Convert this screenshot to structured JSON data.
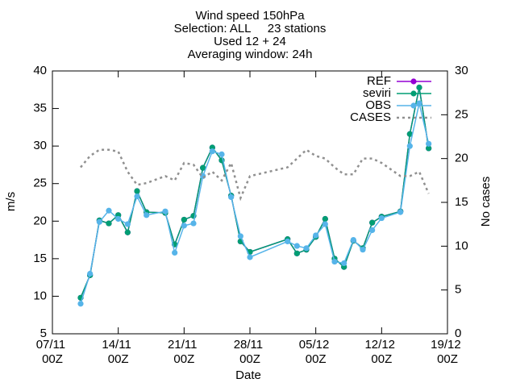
{
  "chart_data": {
    "type": "line",
    "title": [
      "Wind speed 150hPa",
      "Selection: ALL     23 stations",
      "Used 12 + 24",
      "Averaging window: 24h"
    ],
    "xlabel": "Date",
    "ylabel": "m/s",
    "y2label": "No cases",
    "x": [
      "10/11 00Z",
      "11/11 00Z",
      "12/11 00Z",
      "13/11 00Z",
      "14/11 00Z",
      "15/11 00Z",
      "16/11 00Z",
      "17/11 00Z",
      "19/11 00Z",
      "20/11 00Z",
      "21/11 00Z",
      "22/11 00Z",
      "23/11 00Z",
      "24/11 00Z",
      "25/11 00Z",
      "26/11 00Z",
      "27/11 00Z",
      "28/11 00Z",
      "02/12 00Z",
      "03/12 00Z",
      "04/12 00Z",
      "05/12 00Z",
      "06/12 00Z",
      "07/12 00Z",
      "08/12 00Z",
      "09/12 00Z",
      "10/12 00Z",
      "11/12 00Z",
      "12/12 00Z",
      "14/12 00Z",
      "15/12 00Z",
      "16/12 00Z",
      "17/12 00Z"
    ],
    "series": [
      {
        "name": "REF",
        "color": "#9400d3",
        "marker": true,
        "values": [
          9.8,
          12.8,
          20.1,
          19.7,
          20.8,
          18.5,
          24.0,
          21.2,
          21.1,
          16.9,
          20.2,
          20.7,
          27.1,
          29.8,
          28.1,
          23.4,
          17.3,
          15.9,
          17.6,
          15.7,
          16.2,
          17.9,
          20.3,
          15.0,
          13.9,
          17.4,
          16.4,
          19.8,
          20.6,
          21.3,
          31.6,
          37.8,
          29.7
        ]
      },
      {
        "name": "seviri",
        "color": "#009e73",
        "marker": true,
        "values": [
          9.8,
          12.8,
          20.1,
          19.7,
          20.8,
          18.5,
          24.0,
          21.2,
          21.1,
          16.9,
          20.2,
          20.7,
          27.1,
          29.8,
          28.1,
          23.4,
          17.3,
          15.9,
          17.6,
          15.7,
          16.2,
          17.9,
          20.3,
          15.0,
          13.9,
          17.4,
          16.4,
          19.8,
          20.6,
          21.3,
          31.6,
          37.8,
          29.7
        ]
      },
      {
        "name": "OBS",
        "color": "#56b4e9",
        "marker": true,
        "values": [
          9.0,
          13.0,
          19.9,
          21.4,
          20.3,
          19.6,
          23.3,
          20.8,
          21.3,
          15.8,
          19.4,
          19.7,
          26.0,
          29.3,
          28.9,
          23.2,
          18.0,
          15.2,
          17.3,
          16.7,
          16.4,
          18.1,
          19.6,
          14.6,
          14.4,
          17.5,
          16.2,
          18.8,
          20.4,
          21.2,
          30.0,
          35.7,
          30.3
        ]
      },
      {
        "name": "CASES",
        "color": "#909090",
        "marker": false,
        "dash": true,
        "axis": "y2",
        "values": [
          19,
          20.3,
          21,
          21,
          20.8,
          18.5,
          17,
          17.2,
          18,
          17.5,
          19.5,
          19.3,
          17.8,
          18.5,
          17.5,
          19.5,
          15.5,
          18,
          19,
          20,
          21,
          20.3,
          20,
          19,
          18.2,
          18.2,
          20,
          20,
          19.5,
          18,
          18,
          18.5,
          16
        ]
      }
    ],
    "xlim": [
      "07/11 00Z",
      "19/12 00Z"
    ],
    "xticks": [
      "07/11 00Z",
      "14/11 00Z",
      "21/11 00Z",
      "28/11 00Z",
      "05/12 00Z",
      "12/12 00Z",
      "19/12 00Z"
    ],
    "ylim": [
      5,
      40
    ],
    "yticks": [
      5,
      10,
      15,
      20,
      25,
      30,
      35,
      40
    ],
    "y2lim": [
      0,
      30
    ],
    "y2ticks": [
      0,
      5,
      10,
      15,
      20,
      25,
      30
    ],
    "grid": false,
    "legend": "top-right"
  }
}
